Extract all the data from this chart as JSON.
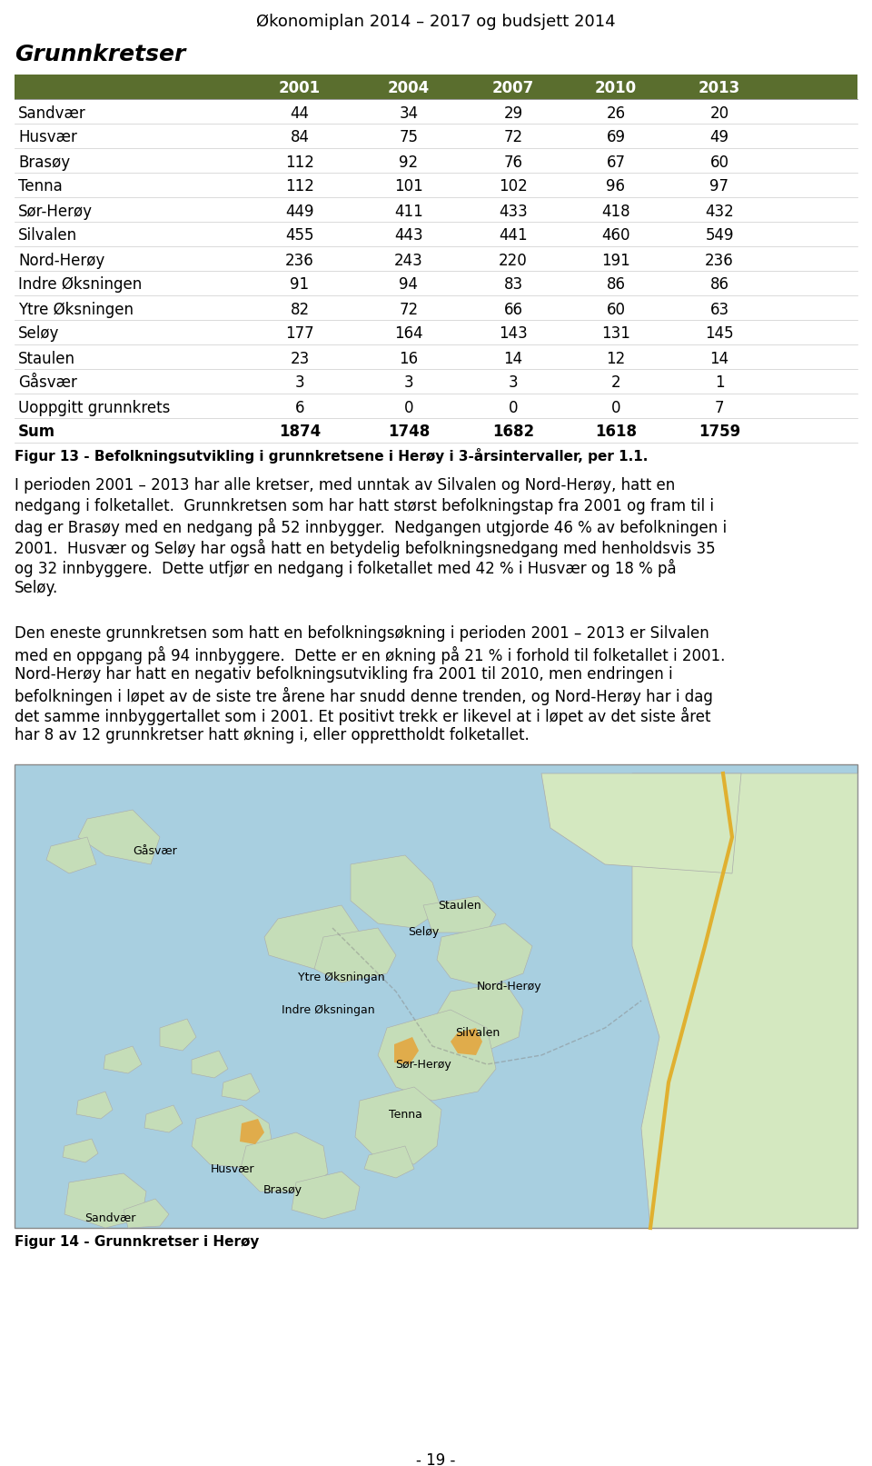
{
  "page_title": "Økonomiplan 2014 – 2017 og budsjett 2014",
  "section_title": "Grunnkretser",
  "table_header": [
    "",
    "2001",
    "2004",
    "2007",
    "2010",
    "2013"
  ],
  "table_rows": [
    [
      "Sandvær",
      "44",
      "34",
      "29",
      "26",
      "20"
    ],
    [
      "Husvær",
      "84",
      "75",
      "72",
      "69",
      "49"
    ],
    [
      "Brasøy",
      "112",
      "92",
      "76",
      "67",
      "60"
    ],
    [
      "Tenna",
      "112",
      "101",
      "102",
      "96",
      "97"
    ],
    [
      "Sør-Herøy",
      "449",
      "411",
      "433",
      "418",
      "432"
    ],
    [
      "Silvalen",
      "455",
      "443",
      "441",
      "460",
      "549"
    ],
    [
      "Nord-Herøy",
      "236",
      "243",
      "220",
      "191",
      "236"
    ],
    [
      "Indre Øksningen",
      "91",
      "94",
      "83",
      "86",
      "86"
    ],
    [
      "Ytre Øksningen",
      "82",
      "72",
      "66",
      "60",
      "63"
    ],
    [
      "Seløy",
      "177",
      "164",
      "143",
      "131",
      "145"
    ],
    [
      "Staulen",
      "23",
      "16",
      "14",
      "12",
      "14"
    ],
    [
      "Gåsvær",
      "3",
      "3",
      "3",
      "2",
      "1"
    ],
    [
      "Uoppgitt grunnkrets",
      "6",
      "0",
      "0",
      "0",
      "7"
    ],
    [
      "Sum",
      "1874",
      "1748",
      "1682",
      "1618",
      "1759"
    ]
  ],
  "header_bg_color": "#5a6e2e",
  "header_text_color": "#ffffff",
  "table_text_color": "#000000",
  "figure13_caption": "Figur 13 - Befolkningsutvikling i grunnkretsene i Herøy i 3-årsintervaller, per 1.1.",
  "para1_lines": [
    "I perioden 2001 – 2013 har alle kretser, med unntak av Silvalen og Nord-Herøy, hatt en",
    "nedgang i folketallet.  Grunnkretsen som har hatt størst befolkningstap fra 2001 og fram til i",
    "dag er Brasøy med en nedgang på 52 innbygger.  Nedgangen utgjorde 46 % av befolkningen i",
    "2001.  Husvær og Seløy har også hatt en betydelig befolkningsnedgang med henholdsvis 35",
    "og 32 innbyggere.  Dette utfjør en nedgang i folketallet med 42 % i Husvær og 18 % på",
    "Seløy."
  ],
  "para2_lines": [
    "Den eneste grunnkretsen som hatt en befolkningsøkning i perioden 2001 – 2013 er Silvalen",
    "med en oppgang på 94 innbyggere.  Dette er en økning på 21 % i forhold til folketallet i 2001.",
    "Nord-Herøy har hatt en negativ befolkningsutvikling fra 2001 til 2010, men endringen i",
    "befolkningen i løpet av de siste tre årene har snudd denne trenden, og Nord-Herøy har i dag",
    "det samme innbyggertallet som i 2001. Et positivt trekk er likevel at i løpet av det siste året",
    "har 8 av 12 grunnkretser hatt økning i, eller opprettholdt folketallet."
  ],
  "figure14_caption": "Figur 14 - Grunnkretser i Herøy",
  "page_number": "- 19 -",
  "background_color": "#ffffff",
  "map_labels": [
    [
      "Gåsvær",
      155,
      95
    ],
    [
      "Staulen",
      490,
      155
    ],
    [
      "Seløy",
      450,
      185
    ],
    [
      "Ytre Øksningan",
      360,
      235
    ],
    [
      "Nord-Herøy",
      545,
      245
    ],
    [
      "Indre Øksningan",
      345,
      270
    ],
    [
      "Silvalen",
      510,
      295
    ],
    [
      "Sør-Herøy",
      450,
      330
    ],
    [
      "Tenna",
      430,
      385
    ],
    [
      "Husvær",
      240,
      445
    ],
    [
      "Brasøy",
      295,
      468
    ],
    [
      "Sandvær",
      105,
      500
    ]
  ]
}
